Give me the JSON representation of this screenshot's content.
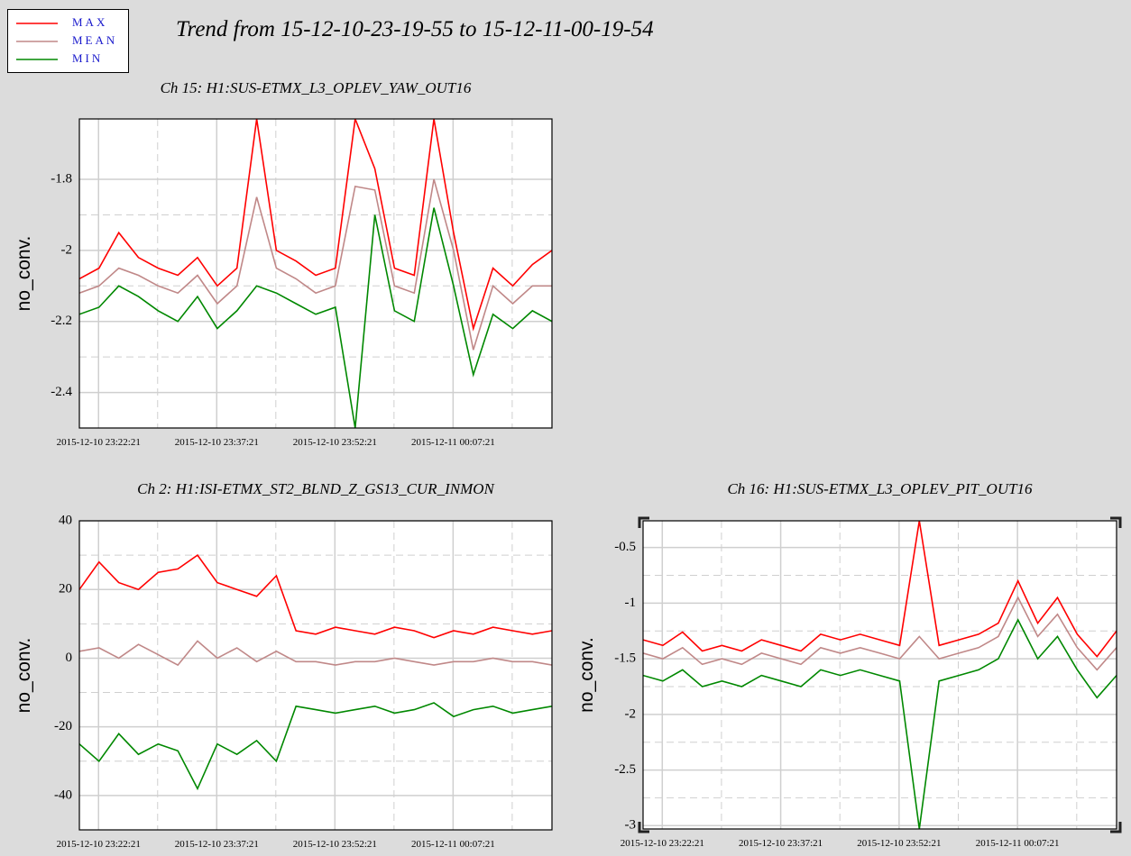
{
  "title": "Trend from 15-12-10-23-19-55 to 15-12-11-00-19-54",
  "chart_data": [
    {
      "type": "line",
      "title": "Ch 15: H1:SUS-ETMX_L3_OPLEV_YAW_OUT16",
      "y_label": "no_conv.",
      "x": [
        "2015-12-10 23:19:55",
        "2015-12-10 23:22:25",
        "2015-12-10 23:24:55",
        "2015-12-10 23:27:25",
        "2015-12-10 23:29:55",
        "2015-12-10 23:32:25",
        "2015-12-10 23:34:55",
        "2015-12-10 23:37:25",
        "2015-12-10 23:39:55",
        "2015-12-10 23:42:25",
        "2015-12-10 23:44:55",
        "2015-12-10 23:47:25",
        "2015-12-10 23:49:55",
        "2015-12-10 23:52:25",
        "2015-12-10 23:54:55",
        "2015-12-10 23:57:25",
        "2015-12-10 23:59:55",
        "2015-12-11 00:02:25",
        "2015-12-11 00:04:55",
        "2015-12-11 00:07:25",
        "2015-12-11 00:09:55",
        "2015-12-11 00:12:25",
        "2015-12-11 00:14:55",
        "2015-12-11 00:17:25",
        "2015-12-11 00:19:54"
      ],
      "xlim": [
        "2015-12-10 23:19:55",
        "2015-12-11 00:19:54"
      ],
      "xticks": [
        "2015-12-10 23:22:21",
        "2015-12-10 23:37:21",
        "2015-12-10 23:52:21",
        "2015-12-11 00:07:21"
      ],
      "ylim": [
        -2.5,
        -1.63
      ],
      "yticks": [
        -2.4,
        -2.2,
        -2,
        -1.8
      ],
      "grid": true,
      "series": [
        {
          "name": "MAX",
          "color": "#ff0000",
          "values": [
            -2.08,
            -2.05,
            -1.95,
            -2.02,
            -2.05,
            -2.07,
            -2.02,
            -2.1,
            -2.05,
            -1.63,
            -2.0,
            -2.03,
            -2.07,
            -2.05,
            -1.63,
            -1.77,
            -2.05,
            -2.07,
            -1.63,
            -1.95,
            -2.22,
            -2.05,
            -2.1,
            -2.04,
            -2.0
          ]
        },
        {
          "name": "MEAN",
          "color": "#c08888",
          "values": [
            -2.12,
            -2.1,
            -2.05,
            -2.07,
            -2.1,
            -2.12,
            -2.07,
            -2.15,
            -2.1,
            -1.85,
            -2.05,
            -2.08,
            -2.12,
            -2.1,
            -1.82,
            -1.83,
            -2.1,
            -2.12,
            -1.8,
            -2.0,
            -2.28,
            -2.1,
            -2.15,
            -2.1,
            -2.1
          ]
        },
        {
          "name": "MIN",
          "color": "#008800",
          "values": [
            -2.18,
            -2.16,
            -2.1,
            -2.13,
            -2.17,
            -2.2,
            -2.13,
            -2.22,
            -2.17,
            -2.1,
            -2.12,
            -2.15,
            -2.18,
            -2.16,
            -2.5,
            -1.9,
            -2.17,
            -2.2,
            -1.88,
            -2.1,
            -2.35,
            -2.18,
            -2.22,
            -2.17,
            -2.2
          ]
        }
      ]
    },
    {
      "type": "line",
      "title": "Ch 2: H1:ISI-ETMX_ST2_BLND_Z_GS13_CUR_INMON",
      "y_label": "no_conv.",
      "x": [
        "2015-12-10 23:19:55",
        "2015-12-10 23:22:25",
        "2015-12-10 23:24:55",
        "2015-12-10 23:27:25",
        "2015-12-10 23:29:55",
        "2015-12-10 23:32:25",
        "2015-12-10 23:34:55",
        "2015-12-10 23:37:25",
        "2015-12-10 23:39:55",
        "2015-12-10 23:42:25",
        "2015-12-10 23:44:55",
        "2015-12-10 23:47:25",
        "2015-12-10 23:49:55",
        "2015-12-10 23:52:25",
        "2015-12-10 23:54:55",
        "2015-12-10 23:57:25",
        "2015-12-10 23:59:55",
        "2015-12-11 00:02:25",
        "2015-12-11 00:04:55",
        "2015-12-11 00:07:25",
        "2015-12-11 00:09:55",
        "2015-12-11 00:12:25",
        "2015-12-11 00:14:55",
        "2015-12-11 00:17:25",
        "2015-12-11 00:19:54"
      ],
      "xlim": [
        "2015-12-10 23:19:55",
        "2015-12-11 00:19:54"
      ],
      "xticks": [
        "2015-12-10 23:22:21",
        "2015-12-10 23:37:21",
        "2015-12-10 23:52:21",
        "2015-12-11 00:07:21"
      ],
      "ylim": [
        -50,
        40
      ],
      "yticks": [
        -40,
        -20,
        0,
        20,
        40
      ],
      "grid": true,
      "series": [
        {
          "name": "MAX",
          "color": "#ff0000",
          "values": [
            20,
            28,
            22,
            20,
            25,
            26,
            30,
            22,
            20,
            18,
            24,
            8,
            7,
            9,
            8,
            7,
            9,
            8,
            6,
            8,
            7,
            9,
            8,
            7,
            8
          ]
        },
        {
          "name": "MEAN",
          "color": "#c08888",
          "values": [
            2,
            3,
            0,
            4,
            1,
            -2,
            5,
            0,
            3,
            -1,
            2,
            -1,
            -1,
            -2,
            -1,
            -1,
            0,
            -1,
            -2,
            -1,
            -1,
            0,
            -1,
            -1,
            -2
          ]
        },
        {
          "name": "MIN",
          "color": "#008800",
          "values": [
            -25,
            -30,
            -22,
            -28,
            -25,
            -27,
            -38,
            -25,
            -28,
            -24,
            -30,
            -14,
            -15,
            -16,
            -15,
            -14,
            -16,
            -15,
            -13,
            -17,
            -15,
            -14,
            -16,
            -15,
            -14
          ]
        }
      ]
    },
    {
      "type": "line",
      "title": "Ch 16: H1:SUS-ETMX_L3_OPLEV_PIT_OUT16",
      "y_label": "no_conv.",
      "x": [
        "2015-12-10 23:19:55",
        "2015-12-10 23:22:25",
        "2015-12-10 23:24:55",
        "2015-12-10 23:27:25",
        "2015-12-10 23:29:55",
        "2015-12-10 23:32:25",
        "2015-12-10 23:34:55",
        "2015-12-10 23:37:25",
        "2015-12-10 23:39:55",
        "2015-12-10 23:42:25",
        "2015-12-10 23:44:55",
        "2015-12-10 23:47:25",
        "2015-12-10 23:49:55",
        "2015-12-10 23:52:25",
        "2015-12-10 23:54:55",
        "2015-12-10 23:57:25",
        "2015-12-10 23:59:55",
        "2015-12-11 00:02:25",
        "2015-12-11 00:04:55",
        "2015-12-11 00:07:25",
        "2015-12-11 00:09:55",
        "2015-12-11 00:12:25",
        "2015-12-11 00:14:55",
        "2015-12-11 00:17:25",
        "2015-12-11 00:19:54"
      ],
      "xlim": [
        "2015-12-10 23:19:55",
        "2015-12-11 00:19:54"
      ],
      "xticks": [
        "2015-12-10 23:22:21",
        "2015-12-10 23:37:21",
        "2015-12-10 23:52:21",
        "2015-12-11 00:07:21"
      ],
      "ylim": [
        -3.03,
        -0.26
      ],
      "yticks": [
        -3,
        -2.5,
        -2,
        -1.5,
        -1,
        -0.5
      ],
      "grid": true,
      "series": [
        {
          "name": "MAX",
          "color": "#ff0000",
          "values": [
            -1.33,
            -1.38,
            -1.26,
            -1.43,
            -1.38,
            -1.43,
            -1.33,
            -1.38,
            -1.43,
            -1.28,
            -1.33,
            -1.28,
            -1.33,
            -1.38,
            -0.26,
            -1.38,
            -1.33,
            -1.28,
            -1.18,
            -0.8,
            -1.18,
            -0.95,
            -1.28,
            -1.48,
            -1.25
          ]
        },
        {
          "name": "MEAN",
          "color": "#c08888",
          "values": [
            -1.45,
            -1.5,
            -1.4,
            -1.55,
            -1.5,
            -1.55,
            -1.45,
            -1.5,
            -1.55,
            -1.4,
            -1.45,
            -1.4,
            -1.45,
            -1.5,
            -1.3,
            -1.5,
            -1.45,
            -1.4,
            -1.3,
            -0.95,
            -1.3,
            -1.1,
            -1.4,
            -1.6,
            -1.4
          ]
        },
        {
          "name": "MIN",
          "color": "#008800",
          "values": [
            -1.65,
            -1.7,
            -1.6,
            -1.75,
            -1.7,
            -1.75,
            -1.65,
            -1.7,
            -1.75,
            -1.6,
            -1.65,
            -1.6,
            -1.65,
            -1.7,
            -3.03,
            -1.7,
            -1.65,
            -1.6,
            -1.5,
            -1.15,
            -1.5,
            -1.3,
            -1.6,
            -1.85,
            -1.65
          ]
        }
      ]
    }
  ]
}
